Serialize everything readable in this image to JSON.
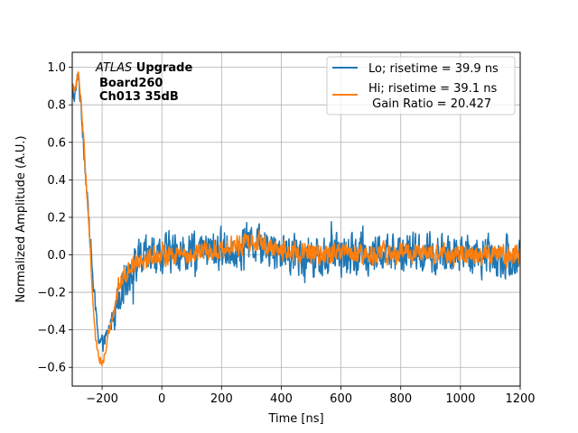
{
  "chart_data": {
    "type": "line",
    "title": "",
    "xlabel": "Time [ns]",
    "ylabel": "Normalized Amplitude (A.U.)",
    "xlim": [
      -300,
      1200
    ],
    "ylim": [
      -0.7,
      1.08
    ],
    "grid": true,
    "xticks": [
      -200,
      0,
      200,
      400,
      600,
      800,
      1000,
      1200
    ],
    "xtick_labels": [
      "−200",
      "0",
      "200",
      "400",
      "600",
      "800",
      "1000",
      "1200"
    ],
    "yticks": [
      -0.6,
      -0.4,
      -0.2,
      0.0,
      0.2,
      0.4,
      0.6,
      0.8,
      1.0
    ],
    "ytick_labels": [
      "−0.6",
      "−0.4",
      "−0.2",
      "0.0",
      "0.2",
      "0.4",
      "0.6",
      "0.8",
      "1.0"
    ],
    "legend_position": "top-right",
    "annotation": {
      "line1_italic": "ATLAS",
      "line1_bold": " Upgrade",
      "line2": "Board260",
      "line3": "Ch013 35dB"
    },
    "series": [
      {
        "name": "Lo; risetime = 39.9 ns",
        "color": "#1f77b4",
        "noise": 0.055,
        "x": [
          -290,
          -280,
          -270,
          -260,
          -250,
          -240,
          -230,
          -220,
          -210,
          -200,
          -190,
          -180,
          -170,
          -160,
          -150,
          -140,
          -120,
          -100,
          -80,
          -50,
          -20,
          0,
          50,
          100,
          150,
          200,
          250,
          300,
          330,
          360,
          400,
          450,
          500,
          550,
          600,
          700,
          800,
          900,
          1000,
          1100,
          1200
        ],
        "y": [
          0.85,
          0.97,
          0.78,
          0.55,
          0.3,
          0.1,
          -0.15,
          -0.33,
          -0.45,
          -0.48,
          -0.46,
          -0.42,
          -0.36,
          -0.3,
          -0.24,
          -0.18,
          -0.12,
          -0.07,
          -0.04,
          -0.02,
          0.0,
          0.0,
          0.02,
          0.0,
          0.02,
          0.03,
          0.04,
          0.07,
          0.06,
          0.04,
          0.02,
          0.01,
          0.0,
          -0.01,
          0.0,
          0.0,
          0.01,
          0.0,
          0.0,
          0.0,
          -0.02
        ]
      },
      {
        "name": "Hi; risetime = 39.1 ns",
        "name_line2": " Gain Ratio = 20.427",
        "color": "#ff7f0e",
        "noise": 0.028,
        "x": [
          -290,
          -280,
          -270,
          -260,
          -250,
          -240,
          -230,
          -220,
          -210,
          -200,
          -190,
          -180,
          -170,
          -160,
          -150,
          -140,
          -120,
          -100,
          -80,
          -50,
          -20,
          0,
          50,
          100,
          150,
          200,
          250,
          300,
          330,
          360,
          400,
          450,
          500,
          550,
          600,
          700,
          800,
          900,
          1000,
          1100,
          1200
        ],
        "y": [
          0.9,
          0.96,
          0.82,
          0.58,
          0.3,
          0.05,
          -0.28,
          -0.47,
          -0.56,
          -0.58,
          -0.53,
          -0.44,
          -0.36,
          -0.28,
          -0.21,
          -0.15,
          -0.09,
          -0.05,
          -0.02,
          -0.01,
          0.0,
          0.0,
          0.01,
          0.0,
          0.02,
          0.03,
          0.05,
          0.08,
          0.07,
          0.05,
          0.02,
          0.01,
          0.0,
          0.0,
          0.0,
          0.0,
          0.01,
          0.0,
          0.0,
          0.0,
          0.0
        ]
      }
    ]
  }
}
